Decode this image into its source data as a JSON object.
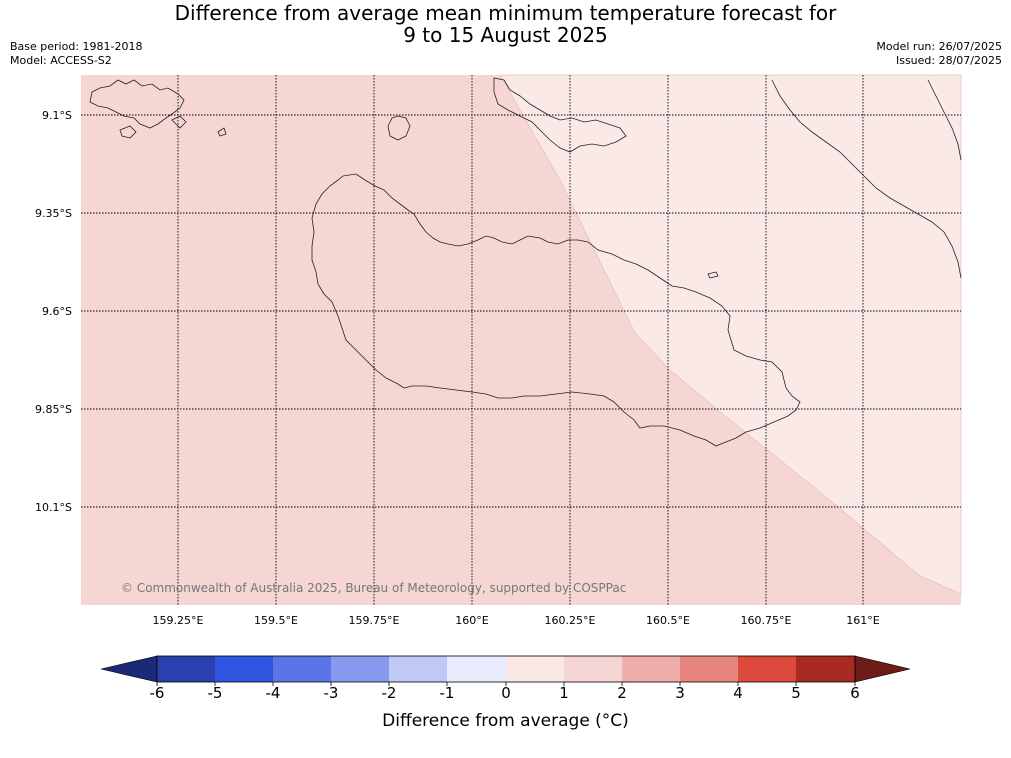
{
  "title_line1": "Difference from average mean minimum temperature forecast for",
  "title_line2": "9 to 15 August 2025",
  "base_period": "Base period: 1981-2018",
  "model": "Model: ACCESS-S2",
  "model_run": "Model run: 26/07/2025",
  "issued": "Issued: 28/07/2025",
  "copyright": "© Commonwealth of Australia 2025, Bureau of Meteorology, supported by COSPPac",
  "lat_labels": [
    "9.1°S",
    "9.35°S",
    "9.6°S",
    "9.85°S",
    "10.1°S"
  ],
  "lon_labels": [
    "159.25°E",
    "159.5°E",
    "159.75°E",
    "160°E",
    "160.25°E",
    "160.5°E",
    "160.75°E",
    "161°E"
  ],
  "legend": {
    "title": "Difference from average (°C)",
    "ticks": [
      "-6",
      "-5",
      "-4",
      "-3",
      "-2",
      "-1",
      "0",
      "1",
      "2",
      "3",
      "4",
      "5",
      "6"
    ],
    "colors": [
      "#1a2a78",
      "#2a3fb0",
      "#2f55e0",
      "#5b74e6",
      "#8799ee",
      "#c0c9f5",
      "#e8ebfb",
      "#fbe9e8",
      "#f5d5d3",
      "#eeaea9",
      "#e5857d",
      "#dc4a3d",
      "#a82a22",
      "#6e1c17"
    ]
  },
  "field": {
    "dominant_range": "1 to 2",
    "eastern_range": "0 to 1",
    "color_1_2": "#f5d6d3",
    "color_0_1": "#fbe9e8"
  }
}
